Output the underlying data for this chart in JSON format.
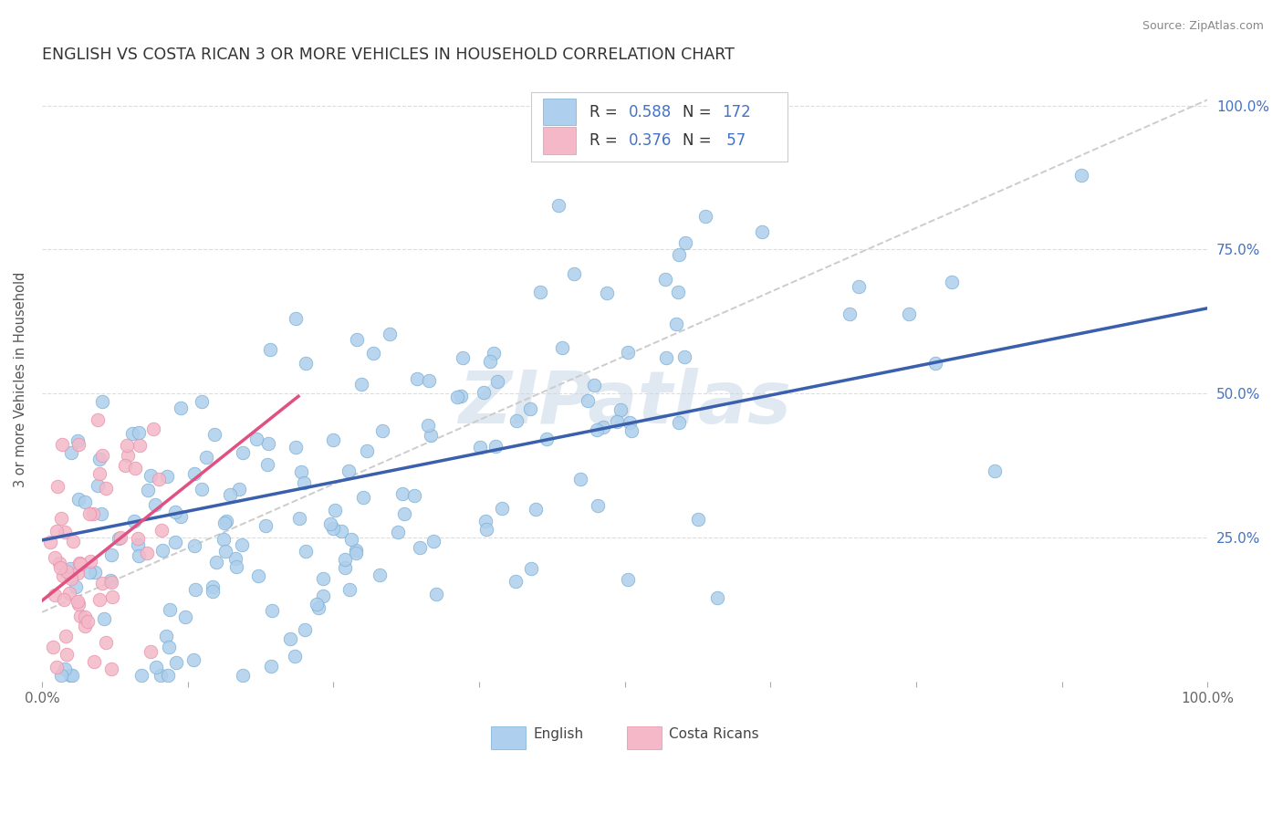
{
  "title": "ENGLISH VS COSTA RICAN 3 OR MORE VEHICLES IN HOUSEHOLD CORRELATION CHART",
  "source": "Source: ZipAtlas.com",
  "ylabel": "3 or more Vehicles in Household",
  "xlim": [
    0.0,
    1.0
  ],
  "ylim": [
    0.0,
    1.05
  ],
  "ytick_labels": [
    "25.0%",
    "50.0%",
    "75.0%",
    "100.0%"
  ],
  "ytick_pos": [
    0.25,
    0.5,
    0.75,
    1.0
  ],
  "english_color": "#aecfed",
  "english_edge": "#7aafd4",
  "costarican_color": "#f4b8c8",
  "costarican_edge": "#e890a8",
  "english_R": 0.588,
  "english_N": 172,
  "costarican_R": 0.376,
  "costarican_N": 57,
  "line_blue": "#3a5fad",
  "line_pink": "#e05080",
  "line_gray": "#cccccc",
  "watermark": "ZIPatlas",
  "watermark_color": "#c8d8e8",
  "background": "#ffffff",
  "grid_color": "#dddddd",
  "legend_color_R": "#333333",
  "legend_color_N": "#4472c4"
}
